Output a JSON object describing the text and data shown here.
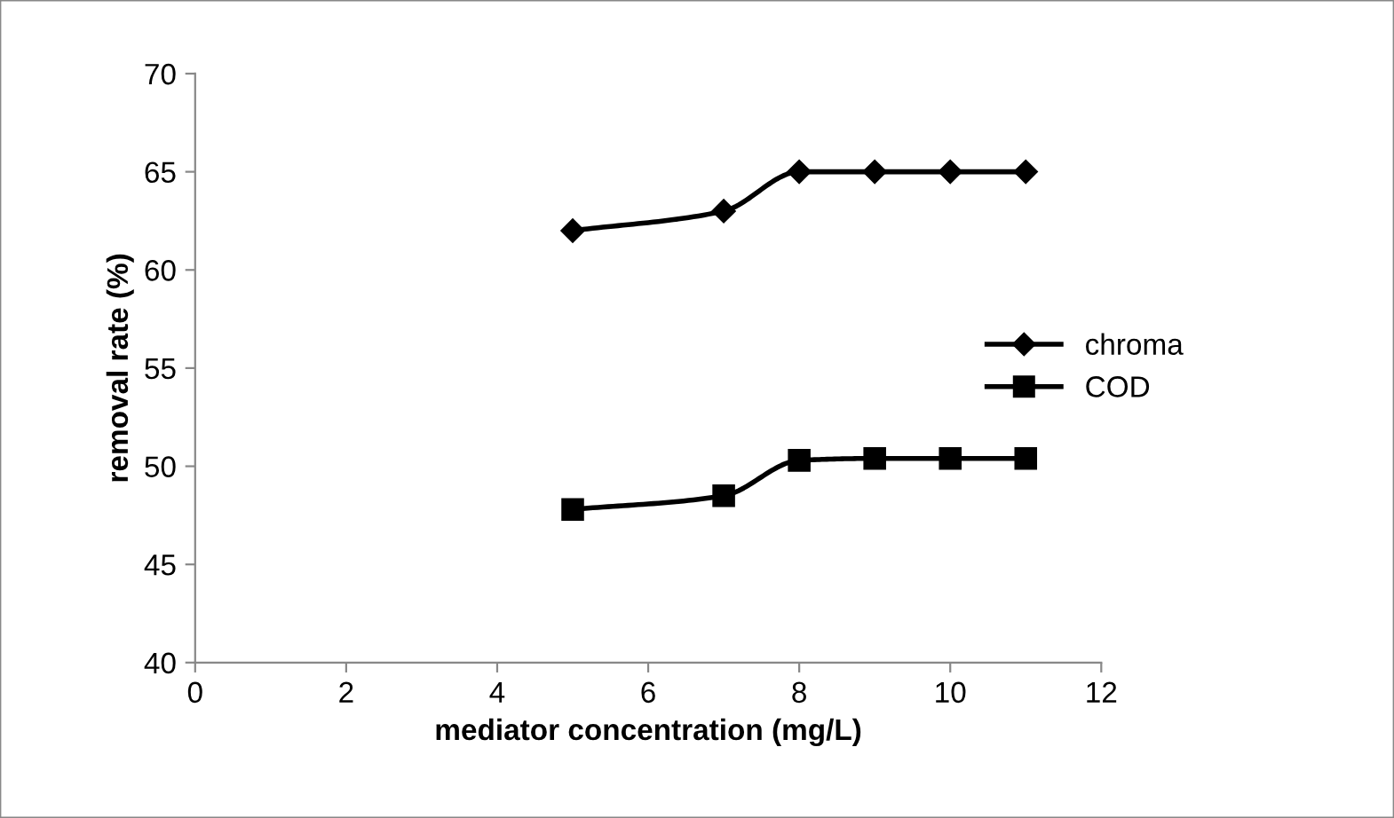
{
  "chart_data": {
    "type": "line",
    "xlabel": "mediator concentration (mg/L)",
    "ylabel": "removal rate (%)",
    "xlim": [
      0,
      12
    ],
    "xticks": [
      0,
      2,
      4,
      6,
      8,
      10,
      12
    ],
    "ylim": [
      40,
      70
    ],
    "yticks": [
      40,
      45,
      50,
      55,
      60,
      65,
      70
    ],
    "grid": false,
    "legend": "center right",
    "line_style": "solid",
    "series": [
      {
        "name": "chroma",
        "color": "#000000",
        "marker": "diamond",
        "x": [
          5,
          7,
          8,
          9,
          10,
          11
        ],
        "values": [
          62,
          63,
          65,
          65,
          65,
          65
        ]
      },
      {
        "name": "COD",
        "color": "#000000",
        "marker": "square",
        "x": [
          5,
          7,
          8,
          9,
          10,
          11
        ],
        "values": [
          47.8,
          48.5,
          50.3,
          50.4,
          50.4,
          50.4
        ]
      }
    ]
  }
}
